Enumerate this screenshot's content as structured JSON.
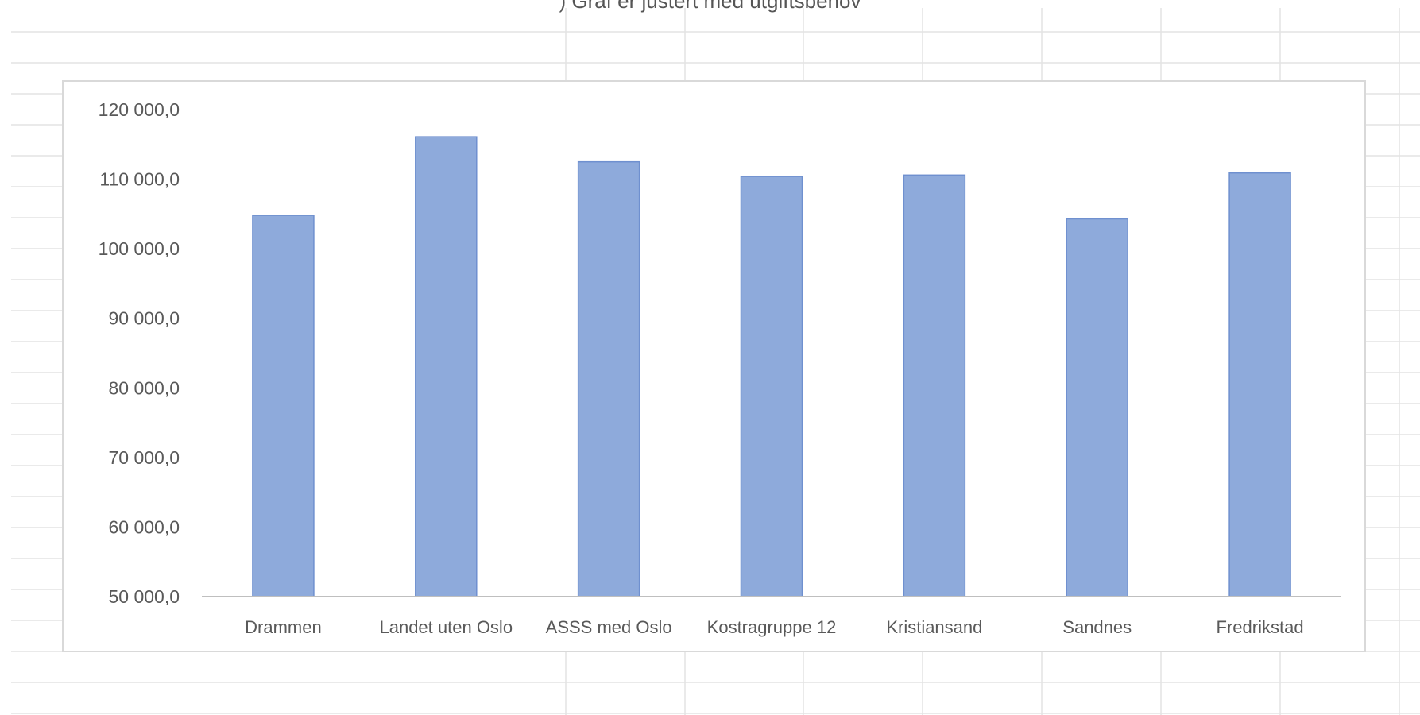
{
  "caption": ") Graf er justert med utgiftsbehov",
  "colors": {
    "bar_fill": "#8eaadb",
    "bar_edge": "#6f90cf",
    "axis_line": "#bfbfbf",
    "tick_text": "#595959",
    "sheet_grid": "#e3e3e3",
    "chart_border": "#d9d9d9"
  },
  "chart_data": {
    "type": "bar",
    "title": "",
    "xlabel": "",
    "ylabel": "",
    "categories": [
      "Drammen",
      "Landet uten Oslo",
      "ASSS med Oslo",
      "Kostragruppe 12",
      "Kristiansand",
      "Sandnes",
      "Fredrikstad"
    ],
    "series": [
      {
        "values": [
          104800,
          116100,
          112500,
          110400,
          110600,
          104300,
          110900
        ]
      }
    ],
    "ylim": [
      50000,
      120000
    ],
    "yticks": [
      50000,
      60000,
      70000,
      80000,
      90000,
      100000,
      110000,
      120000
    ],
    "ytick_labels": [
      "50 000,0",
      "60 000,0",
      "70 000,0",
      "80 000,0",
      "90 000,0",
      "100 000,0",
      "110 000,0",
      "120 000,0"
    ],
    "grid": false,
    "legend": "none"
  }
}
